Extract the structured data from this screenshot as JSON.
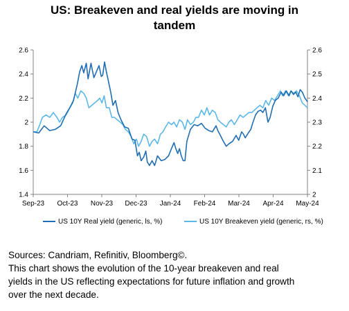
{
  "chart_data": {
    "type": "line",
    "title_lines": [
      "US: Breakeven and real yields are moving in",
      "tandem"
    ],
    "x_ticks": [
      "Sep-23",
      "Oct-23",
      "Nov-23",
      "Dec-23",
      "Jan-24",
      "Feb-24",
      "Mar-24",
      "Apr-24",
      "May-24"
    ],
    "y_left": {
      "ticks": [
        "1.4",
        "1.6",
        "1.8",
        "2",
        "2.2",
        "2.4",
        "2.6"
      ],
      "lim": [
        1.4,
        2.6
      ]
    },
    "y_right": {
      "ticks": [
        "2",
        "2.1",
        "2.2",
        "2.3",
        "2.4",
        "2.5",
        "2.6"
      ],
      "lim": [
        2.0,
        2.6
      ]
    },
    "grid": false,
    "legend_position": "bottom",
    "series": [
      {
        "name": "US 10Y Real yield (generic, ls,  %)",
        "axis": "left",
        "color": "#1f6db3",
        "points": [
          [
            0.0,
            1.92
          ],
          [
            0.15,
            1.91
          ],
          [
            0.3,
            1.97
          ],
          [
            0.45,
            1.93
          ],
          [
            0.6,
            1.94
          ],
          [
            0.75,
            1.97
          ],
          [
            0.9,
            2.07
          ],
          [
            1.0,
            2.12
          ],
          [
            1.1,
            2.18
          ],
          [
            1.2,
            2.31
          ],
          [
            1.27,
            2.42
          ],
          [
            1.33,
            2.47
          ],
          [
            1.38,
            2.41
          ],
          [
            1.45,
            2.49
          ],
          [
            1.5,
            2.36
          ],
          [
            1.58,
            2.49
          ],
          [
            1.66,
            2.37
          ],
          [
            1.73,
            2.42
          ],
          [
            1.8,
            2.47
          ],
          [
            1.86,
            2.38
          ],
          [
            1.9,
            2.39
          ],
          [
            1.95,
            2.5
          ],
          [
            2.0,
            2.42
          ],
          [
            2.05,
            2.35
          ],
          [
            2.12,
            2.25
          ],
          [
            2.18,
            2.14
          ],
          [
            2.25,
            2.18
          ],
          [
            2.32,
            2.08
          ],
          [
            2.4,
            2.02
          ],
          [
            2.5,
            1.96
          ],
          [
            2.6,
            1.95
          ],
          [
            2.7,
            1.86
          ],
          [
            2.78,
            1.85
          ],
          [
            2.85,
            1.72
          ],
          [
            2.9,
            1.75
          ],
          [
            2.95,
            1.68
          ],
          [
            3.02,
            1.71
          ],
          [
            3.08,
            1.76
          ],
          [
            3.12,
            1.67
          ],
          [
            3.18,
            1.64
          ],
          [
            3.25,
            1.68
          ],
          [
            3.32,
            1.64
          ],
          [
            3.4,
            1.72
          ],
          [
            3.5,
            1.68
          ],
          [
            3.6,
            1.69
          ],
          [
            3.7,
            1.72
          ],
          [
            3.78,
            1.78
          ],
          [
            3.85,
            1.83
          ],
          [
            3.9,
            1.78
          ],
          [
            3.95,
            1.74
          ],
          [
            4.0,
            1.78
          ],
          [
            4.05,
            1.72
          ],
          [
            4.1,
            1.68
          ],
          [
            4.15,
            1.68
          ],
          [
            4.2,
            1.84
          ],
          [
            4.3,
            1.94
          ],
          [
            4.4,
            1.98
          ],
          [
            4.5,
            1.97
          ],
          [
            4.6,
            1.99
          ],
          [
            4.7,
            1.95
          ],
          [
            4.8,
            1.93
          ],
          [
            4.9,
            1.92
          ],
          [
            5.0,
            1.97
          ],
          [
            5.05,
            1.93
          ],
          [
            5.12,
            1.89
          ],
          [
            5.2,
            1.84
          ],
          [
            5.28,
            1.8
          ],
          [
            5.35,
            1.82
          ],
          [
            5.45,
            1.84
          ],
          [
            5.55,
            1.89
          ],
          [
            5.62,
            1.85
          ],
          [
            5.7,
            1.92
          ],
          [
            5.75,
            1.9
          ],
          [
            5.8,
            1.87
          ],
          [
            5.88,
            1.91
          ],
          [
            5.95,
            1.94
          ],
          [
            6.0,
            1.99
          ],
          [
            6.08,
            2.06
          ],
          [
            6.15,
            2.09
          ],
          [
            6.22,
            2.1
          ],
          [
            6.28,
            2.08
          ],
          [
            6.35,
            2.12
          ],
          [
            6.42,
            2.0
          ],
          [
            6.48,
            2.04
          ],
          [
            6.55,
            2.13
          ],
          [
            6.62,
            2.18
          ],
          [
            6.7,
            2.2
          ],
          [
            6.78,
            2.25
          ],
          [
            6.85,
            2.22
          ],
          [
            6.92,
            2.26
          ],
          [
            7.0,
            2.22
          ],
          [
            7.05,
            2.26
          ],
          [
            7.12,
            2.23
          ],
          [
            7.18,
            2.25
          ],
          [
            7.24,
            2.21
          ],
          [
            7.3,
            2.27
          ],
          [
            7.36,
            2.25
          ],
          [
            7.43,
            2.2
          ],
          [
            7.5,
            2.17
          ]
        ]
      },
      {
        "name": "US 10Y Breakeven yield (generic, rs, %)",
        "axis": "right",
        "color": "#5bb8e6",
        "points": [
          [
            0.0,
            2.26
          ],
          [
            0.1,
            2.26
          ],
          [
            0.18,
            2.29
          ],
          [
            0.25,
            2.32
          ],
          [
            0.35,
            2.33
          ],
          [
            0.45,
            2.32
          ],
          [
            0.55,
            2.34
          ],
          [
            0.65,
            2.32
          ],
          [
            0.72,
            2.3
          ],
          [
            0.8,
            2.32
          ],
          [
            0.9,
            2.33
          ],
          [
            1.0,
            2.36
          ],
          [
            1.08,
            2.38
          ],
          [
            1.15,
            2.42
          ],
          [
            1.22,
            2.4
          ],
          [
            1.3,
            2.43
          ],
          [
            1.38,
            2.42
          ],
          [
            1.45,
            2.4
          ],
          [
            1.52,
            2.36
          ],
          [
            1.6,
            2.37
          ],
          [
            1.68,
            2.38
          ],
          [
            1.76,
            2.39
          ],
          [
            1.82,
            2.4
          ],
          [
            1.88,
            2.38
          ],
          [
            1.94,
            2.41
          ],
          [
            2.0,
            2.36
          ],
          [
            2.08,
            2.36
          ],
          [
            2.15,
            2.32
          ],
          [
            2.22,
            2.32
          ],
          [
            2.3,
            2.31
          ],
          [
            2.38,
            2.3
          ],
          [
            2.45,
            2.29
          ],
          [
            2.52,
            2.27
          ],
          [
            2.6,
            2.26
          ],
          [
            2.68,
            2.24
          ],
          [
            2.75,
            2.21
          ],
          [
            2.82,
            2.23
          ],
          [
            2.88,
            2.2
          ],
          [
            2.95,
            2.22
          ],
          [
            3.02,
            2.25
          ],
          [
            3.1,
            2.24
          ],
          [
            3.18,
            2.2
          ],
          [
            3.25,
            2.22
          ],
          [
            3.32,
            2.23
          ],
          [
            3.4,
            2.21
          ],
          [
            3.48,
            2.25
          ],
          [
            3.55,
            2.26
          ],
          [
            3.62,
            2.28
          ],
          [
            3.7,
            2.3
          ],
          [
            3.78,
            2.29
          ],
          [
            3.85,
            2.3
          ],
          [
            3.92,
            2.28
          ],
          [
            4.0,
            2.31
          ],
          [
            4.08,
            2.3
          ],
          [
            4.15,
            2.27
          ],
          [
            4.22,
            2.31
          ],
          [
            4.3,
            2.29
          ],
          [
            4.38,
            2.3
          ],
          [
            4.45,
            2.32
          ],
          [
            4.52,
            2.32
          ],
          [
            4.6,
            2.35
          ],
          [
            4.68,
            2.33
          ],
          [
            4.75,
            2.36
          ],
          [
            4.82,
            2.33
          ],
          [
            4.9,
            2.35
          ],
          [
            4.98,
            2.34
          ],
          [
            5.05,
            2.31
          ],
          [
            5.12,
            2.3
          ],
          [
            5.2,
            2.29
          ],
          [
            5.28,
            2.28
          ],
          [
            5.35,
            2.3
          ],
          [
            5.42,
            2.31
          ],
          [
            5.5,
            2.29
          ],
          [
            5.58,
            2.31
          ],
          [
            5.66,
            2.33
          ],
          [
            5.74,
            2.32
          ],
          [
            5.82,
            2.33
          ],
          [
            5.9,
            2.34
          ],
          [
            5.98,
            2.34
          ],
          [
            6.05,
            2.35
          ],
          [
            6.12,
            2.36
          ],
          [
            6.2,
            2.37
          ],
          [
            6.28,
            2.36
          ],
          [
            6.36,
            2.39
          ],
          [
            6.44,
            2.37
          ],
          [
            6.52,
            2.4
          ],
          [
            6.6,
            2.39
          ],
          [
            6.68,
            2.41
          ],
          [
            6.76,
            2.43
          ],
          [
            6.82,
            2.41
          ],
          [
            6.9,
            2.43
          ],
          [
            6.98,
            2.41
          ],
          [
            7.05,
            2.43
          ],
          [
            7.12,
            2.42
          ],
          [
            7.2,
            2.43
          ],
          [
            7.28,
            2.41
          ],
          [
            7.36,
            2.38
          ],
          [
            7.43,
            2.37
          ],
          [
            7.5,
            2.36
          ]
        ]
      }
    ]
  },
  "footnote": {
    "lines": [
      "Sources: Candriam, Refinitiv, Bloomberg©.",
      "This chart shows the evolution of the 10-year breakeven and real",
      "yields in the US reflecting expectations for future inflation and growth",
      "over the next decade."
    ]
  }
}
